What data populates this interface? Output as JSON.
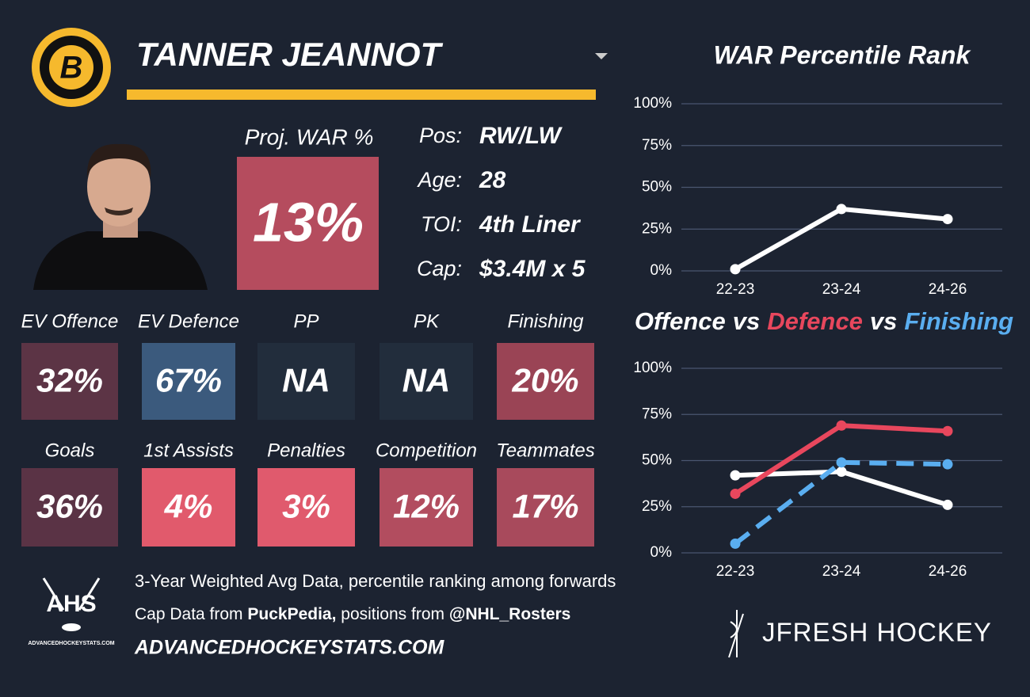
{
  "header": {
    "team_logo_letter": "B",
    "player_name": "TANNER JEANNOT"
  },
  "projection": {
    "label": "Proj. WAR %",
    "value": "13%",
    "color": "#b54c5e"
  },
  "details": [
    {
      "label": "Pos:",
      "value": "RW/LW"
    },
    {
      "label": "Age:",
      "value": "28"
    },
    {
      "label": "TOI:",
      "value": "4th Liner"
    },
    {
      "label": "Cap:",
      "value": "$3.4M x 5"
    }
  ],
  "cards": [
    {
      "label": "EV Offence",
      "value": "32%",
      "color": "#5c3445"
    },
    {
      "label": "EV Defence",
      "value": "67%",
      "color": "#3b5a7d"
    },
    {
      "label": "PP",
      "value": "NA",
      "color": "#222d3c"
    },
    {
      "label": "PK",
      "value": "NA",
      "color": "#222d3c"
    },
    {
      "label": "Finishing",
      "value": "20%",
      "color": "#9a4455"
    },
    {
      "label": "Goals",
      "value": "36%",
      "color": "#5a3345"
    },
    {
      "label": "1st Assists",
      "value": "4%",
      "color": "#e15a6c"
    },
    {
      "label": "Penalties",
      "value": "3%",
      "color": "#e05a6d"
    },
    {
      "label": "Competition",
      "value": "12%",
      "color": "#b24d5f"
    },
    {
      "label": "Teammates",
      "value": "17%",
      "color": "#a84a5c"
    }
  ],
  "chart_data": [
    {
      "type": "line",
      "title": "WAR Percentile Rank",
      "categories": [
        "22-23",
        "23-24",
        "24-26"
      ],
      "series": [
        {
          "color": "#ffffff",
          "values": [
            1,
            37,
            31
          ]
        }
      ],
      "ylim": [
        0,
        100
      ],
      "yticks": [
        {
          "value": 0,
          "label": "0%"
        },
        {
          "value": 25,
          "label": "25%"
        },
        {
          "value": 50,
          "label": "50%"
        },
        {
          "value": 75,
          "label": "75%"
        },
        {
          "value": 100,
          "label": "100%"
        }
      ],
      "grid": true
    },
    {
      "type": "line",
      "connector": "vs",
      "categories": [
        "22-23",
        "23-24",
        "24-26"
      ],
      "series": [
        {
          "name": "Offence",
          "color": "#ffffff",
          "values": [
            42,
            44,
            26
          ]
        },
        {
          "name": "Defence",
          "color": "#e8475d",
          "values": [
            32,
            69,
            66
          ]
        },
        {
          "name": "Finishing",
          "color": "#5aaef0",
          "values": [
            5,
            49,
            48
          ],
          "line_style": "dashed"
        }
      ],
      "ylim": [
        0,
        100
      ],
      "yticks": [
        {
          "value": 0,
          "label": "0%"
        },
        {
          "value": 25,
          "label": "25%"
        },
        {
          "value": 50,
          "label": "50%"
        },
        {
          "value": 75,
          "label": "75%"
        },
        {
          "value": 100,
          "label": "100%"
        }
      ],
      "grid": true
    }
  ],
  "footer": {
    "logo_text": "AHS",
    "logo_caption": "ADVANCEDHOCKEYSTATS.COM",
    "note": "3-Year Weighted Avg Data, percentile ranking among forwards",
    "credits": [
      "Cap Data from ",
      "PuckPedia,",
      " positions from ",
      "@NHL_Rosters"
    ],
    "website": "ADVANCEDHOCKEYSTATS.COM",
    "brand": "JFRESH HOCKEY"
  }
}
